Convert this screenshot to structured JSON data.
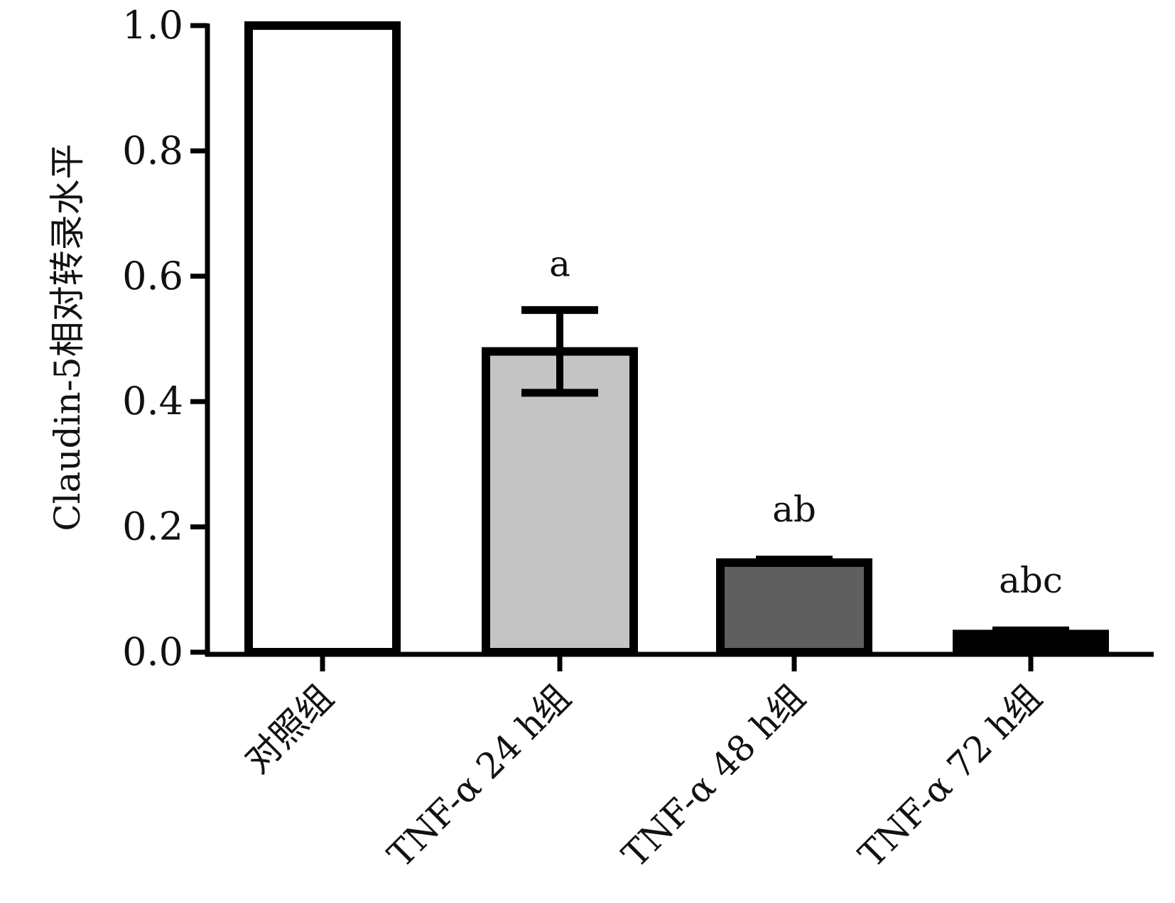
{
  "chart_data": {
    "type": "bar",
    "title": "",
    "xlabel": "",
    "ylabel": "Claudin-5相对转录水平",
    "ylim": [
      0,
      1.0
    ],
    "yticks": [
      "0.0",
      "0.2",
      "0.4",
      "0.6",
      "0.8",
      "1.0"
    ],
    "categories": [
      "对照组",
      "TNF-α 24 h组",
      "TNF-α 48 h组",
      "TNF-α 72 h组"
    ],
    "values": [
      1.0,
      0.48,
      0.143,
      0.029
    ],
    "errors": [
      0,
      0.066,
      0.011,
      0.012
    ],
    "annotations": [
      "",
      "a",
      "ab",
      "abc"
    ],
    "colors": [
      "#ffffff",
      "#c4c4c4",
      "#5f5f5f",
      "#000000"
    ],
    "grid": false
  }
}
